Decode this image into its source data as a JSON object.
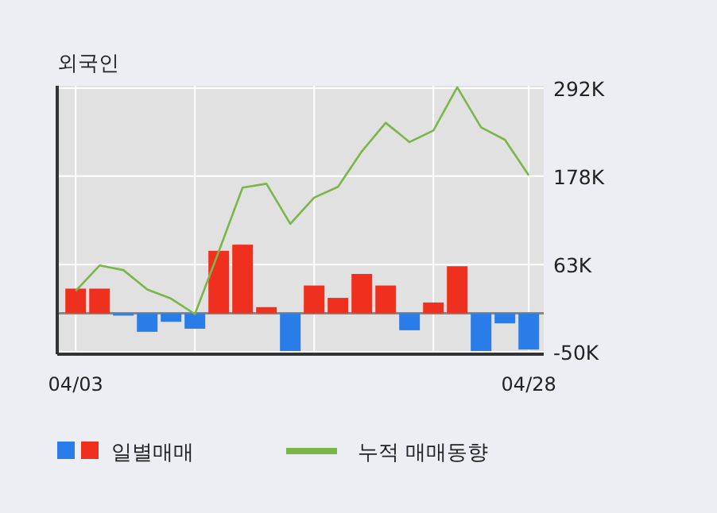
{
  "chart_data": {
    "type": "bar",
    "title": "외국인",
    "categories": [
      "04/03",
      null,
      null,
      null,
      null,
      null,
      null,
      null,
      null,
      null,
      null,
      null,
      null,
      null,
      null,
      null,
      null,
      null,
      null,
      "04/28"
    ],
    "series": [
      {
        "name": "일별매매",
        "colors": [
          "#f0301e",
          "#f0301e",
          "#2a7de8",
          "#2a7de8",
          "#2a7de8",
          "#2a7de8",
          "#f0301e",
          "#f0301e",
          "#f0301e",
          "#2a7de8",
          "#f0301e",
          "#f0301e",
          "#f0301e",
          "#f0301e",
          "#2a7de8",
          "#f0301e",
          "#f0301e",
          "#2a7de8",
          "#2a7de8",
          "#2a7de8"
        ],
        "values": [
          32000,
          32000,
          -3000,
          -24000,
          -11000,
          -20000,
          81000,
          89000,
          8000,
          -49000,
          36000,
          20000,
          51000,
          36000,
          -22000,
          14000,
          61000,
          -49000,
          -13000,
          -47000
        ]
      },
      {
        "name": "누적 매매동향",
        "type": "line",
        "color": "#7ab648",
        "values": [
          29000,
          62000,
          56000,
          31000,
          19000,
          -1000,
          80000,
          163000,
          168000,
          116000,
          150000,
          164000,
          210000,
          247000,
          222000,
          237000,
          293000,
          241000,
          225000,
          179000
        ]
      }
    ],
    "ylim": [
      -53000,
      295000
    ],
    "yticks": [
      {
        "value": -50000,
        "label": "-50K"
      },
      {
        "value": 63000,
        "label": "63K"
      },
      {
        "value": 178000,
        "label": "178K"
      },
      {
        "value": 292000,
        "label": "292K"
      }
    ],
    "grid": true,
    "legend": "bottom"
  }
}
